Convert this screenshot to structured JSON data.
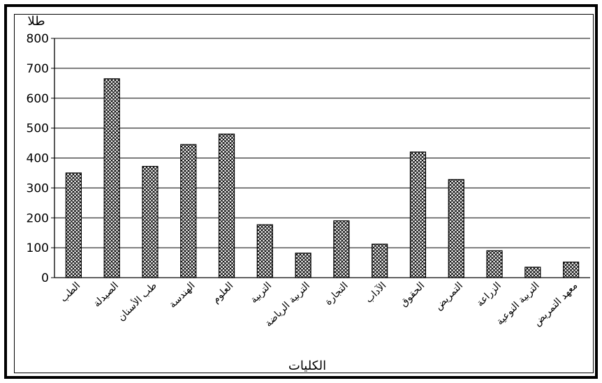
{
  "chart_data": {
    "type": "bar",
    "title": "",
    "ylabel": "طلا",
    "xlabel": "الكليات",
    "ylim": [
      0,
      800
    ],
    "yticks": [
      0,
      100,
      200,
      300,
      400,
      500,
      600,
      700,
      800
    ],
    "grid": true,
    "legend": "none",
    "bar_fill": "crosshatch",
    "colors": {
      "bar_stroke": "#000000",
      "grid": "#000000",
      "background": "#ffffff"
    },
    "categories": [
      "الطب",
      "الصيدلة",
      "طب الأسنان",
      "الهندسة",
      "العلوم",
      "التربية",
      "التربية الرياضة",
      "التجارة",
      "الآداب",
      "الحقوق",
      "التمريض",
      "الزراعة",
      "التربية النوعية",
      "معهد التمريض"
    ],
    "values": [
      350,
      665,
      372,
      445,
      480,
      177,
      82,
      190,
      112,
      420,
      328,
      90,
      35,
      52
    ]
  }
}
